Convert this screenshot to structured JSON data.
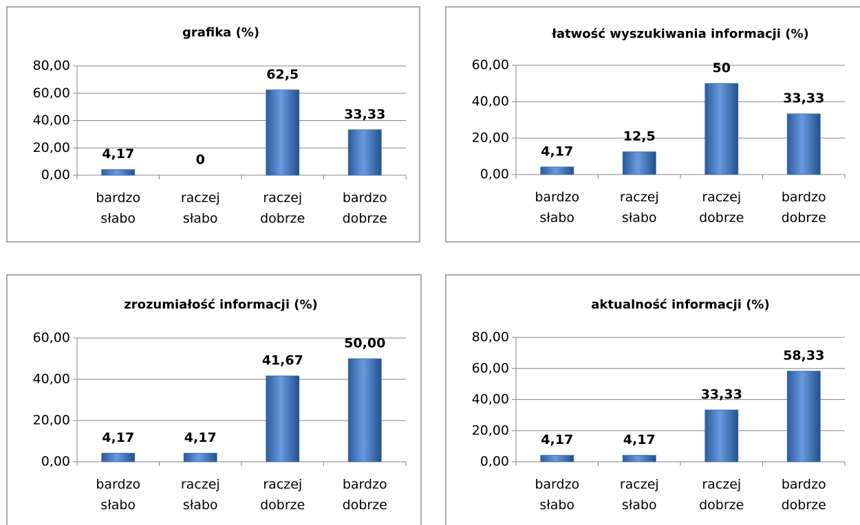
{
  "chart_data": [
    {
      "type": "bar",
      "title": "grafika (%)",
      "categories": [
        "bardzo słabo",
        "raczej słabo",
        "raczej dobrze",
        "bardzo dobrze"
      ],
      "values": [
        4.17,
        0,
        62.5,
        33.33
      ],
      "value_labels": [
        "4,17",
        "0",
        "62,5",
        "33,33"
      ],
      "color": "#4f81bd",
      "ylim": [
        0,
        80
      ],
      "yticks": [
        {
          "value": 0,
          "label": "0,00"
        },
        {
          "value": 20,
          "label": "20,00"
        },
        {
          "value": 40,
          "label": "40,00"
        },
        {
          "value": 60,
          "label": "60,00"
        },
        {
          "value": 80,
          "label": "80,00"
        }
      ],
      "grid": true
    },
    {
      "type": "bar",
      "title": "łatwość wyszukiwania informacji (%)",
      "categories": [
        "bardzo słabo",
        "raczej słabo",
        "raczej dobrze",
        "bardzo dobrze"
      ],
      "values": [
        4.17,
        12.5,
        50,
        33.33
      ],
      "value_labels": [
        "4,17",
        "12,5",
        "50",
        "33,33"
      ],
      "color": "#4f81bd",
      "ylim": [
        0,
        60
      ],
      "yticks": [
        {
          "value": 0,
          "label": "0,00"
        },
        {
          "value": 20,
          "label": "20,00"
        },
        {
          "value": 40,
          "label": "40,00"
        },
        {
          "value": 60,
          "label": "60,00"
        }
      ],
      "grid": true
    },
    {
      "type": "bar",
      "title": "zrozumiałość informacji (%)",
      "categories": [
        "bardzo słabo",
        "raczej słabo",
        "raczej dobrze",
        "bardzo dobrze"
      ],
      "values": [
        4.17,
        4.17,
        41.67,
        50.0
      ],
      "value_labels": [
        "4,17",
        "4,17",
        "41,67",
        "50,00"
      ],
      "color": "#4f81bd",
      "ylim": [
        0,
        60
      ],
      "yticks": [
        {
          "value": 0,
          "label": "0,00"
        },
        {
          "value": 20,
          "label": "20,00"
        },
        {
          "value": 40,
          "label": "40,00"
        },
        {
          "value": 60,
          "label": "60,00"
        }
      ],
      "grid": true
    },
    {
      "type": "bar",
      "title": "aktualność informacji (%)",
      "categories": [
        "bardzo słabo",
        "raczej słabo",
        "raczej dobrze",
        "bardzo dobrze"
      ],
      "values": [
        4.17,
        4.17,
        33.33,
        58.33
      ],
      "value_labels": [
        "4,17",
        "4,17",
        "33,33",
        "58,33"
      ],
      "color": "#4f81bd",
      "ylim": [
        0,
        80
      ],
      "yticks": [
        {
          "value": 0,
          "label": "0,00"
        },
        {
          "value": 20,
          "label": "20,00"
        },
        {
          "value": 40,
          "label": "40,00"
        },
        {
          "value": 60,
          "label": "60,00"
        },
        {
          "value": 80,
          "label": "80,00"
        }
      ],
      "grid": true
    }
  ]
}
